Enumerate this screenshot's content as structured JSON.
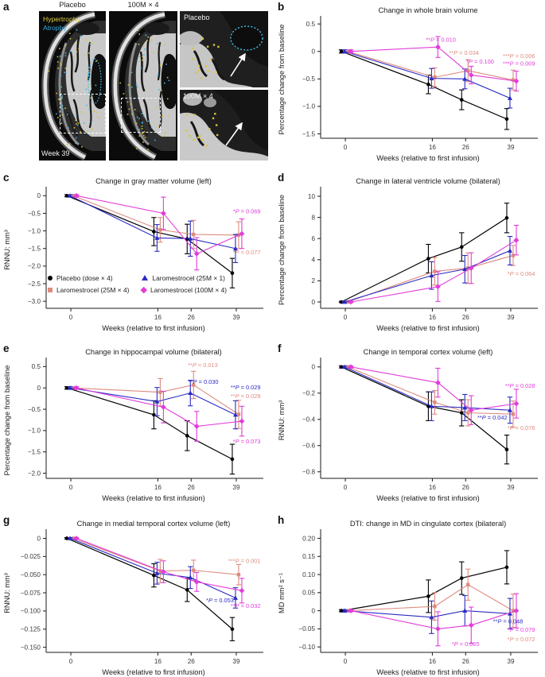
{
  "palette": {
    "ink": "#1a1a1a",
    "tick_text": "#3a3a3a",
    "title_text": "#1c1c1c"
  },
  "groups": [
    {
      "key": "placebo",
      "label": "Placebo (dose × 4)",
      "marker": "circle",
      "color": "#000000"
    },
    {
      "key": "l25m4",
      "label": "Laromestrocel (25M × 4)",
      "marker": "square",
      "color": "#DD8C7F"
    },
    {
      "key": "l25m1",
      "label": "Laromestrocel (25M × 1)",
      "marker": "triangle",
      "color": "#2B2BC4"
    },
    {
      "key": "l100m4",
      "label": "Laromestrocel (100M × 4)",
      "marker": "diamond",
      "color": "#E23CD9"
    }
  ],
  "panel_a": {
    "label": "a",
    "columns": [
      "Placebo",
      "100M × 4"
    ],
    "overlay": {
      "hypertrophy": "Hypertrophy",
      "atrophy": "Atrophy",
      "week": "Week 39"
    },
    "insets": [
      "Placebo",
      "100M × 4"
    ],
    "colors": {
      "hypertrophy": "#E0CC3E",
      "atrophy": "#38A9E0"
    }
  },
  "chart_data": [
    {
      "id": "b",
      "panel_label": "b",
      "type": "line",
      "title": "Change in whole brain volume",
      "ylabel": "Percentage change from baseline",
      "xlabel": "Weeks (relative to first infusion)",
      "x": [
        0,
        16,
        26,
        39
      ],
      "xtick_labels": [
        "0",
        "16",
        "26",
        "39"
      ],
      "yticks": [
        {
          "v": 0.5,
          "label": "0.5"
        },
        {
          "v": 0,
          "label": "0"
        },
        {
          "v": -0.5,
          "label": "−0.5"
        },
        {
          "v": -1.0,
          "label": "−1.0"
        },
        {
          "v": -1.5,
          "label": "−1.5"
        }
      ],
      "ylim": [
        -1.58,
        0.56
      ],
      "series": [
        {
          "key": "placebo",
          "values": [
            0,
            -0.6,
            -0.88,
            -1.23
          ],
          "errors": [
            0.03,
            0.17,
            0.18,
            0.19
          ]
        },
        {
          "key": "l25m4",
          "values": [
            0,
            -0.47,
            -0.35,
            -0.52
          ],
          "errors": [
            0.03,
            0.17,
            0.2,
            0.18
          ]
        },
        {
          "key": "l25m1",
          "values": [
            0,
            -0.49,
            -0.5,
            -0.85
          ],
          "errors": [
            0.03,
            0.18,
            0.18,
            0.18
          ]
        },
        {
          "key": "l100m4",
          "values": [
            0,
            0.08,
            -0.43,
            -0.54
          ],
          "errors": [
            0.03,
            0.19,
            0.16,
            0.18
          ]
        }
      ],
      "annotations": [
        {
          "text": "**P = 0.010",
          "series": "l100m4",
          "x": 14.8,
          "y": 0.18,
          "anchor": "start"
        },
        {
          "text": "**P = 0.034",
          "series": "l25m4",
          "x": 21,
          "y": -0.06,
          "anchor": "start"
        },
        {
          "text": "*P = 0.100",
          "series": "l100m4",
          "x": 26.2,
          "y": -0.22,
          "anchor": "start"
        },
        {
          "text": "***P = 0.006",
          "series": "l25m4",
          "x": 46,
          "y": -0.12,
          "anchor": "end"
        },
        {
          "text": "***P = 0.009",
          "series": "l100m4",
          "x": 46,
          "y": -0.26,
          "anchor": "end"
        }
      ]
    },
    {
      "id": "c",
      "panel_label": "c",
      "type": "line",
      "title": "Change in gray matter volume (left)",
      "ylabel": "RNNU: mm³",
      "xlabel": "Weeks (relative to first infusion)",
      "x": [
        0,
        16,
        26,
        39
      ],
      "xtick_labels": [
        "0",
        "16",
        "26",
        "39"
      ],
      "yticks": [
        {
          "v": 0,
          "label": "0"
        },
        {
          "v": -0.5,
          "label": "−0.5"
        },
        {
          "v": -1.0,
          "label": "−1.0"
        },
        {
          "v": -1.5,
          "label": "−1.5"
        },
        {
          "v": -2.0,
          "label": "−2.0"
        },
        {
          "v": -2.5,
          "label": "−2.5"
        },
        {
          "v": -3.0,
          "label": "−3.0"
        }
      ],
      "ylim": [
        -3.2,
        0.12
      ],
      "series": [
        {
          "key": "placebo",
          "values": [
            0,
            -1.02,
            -1.23,
            -2.2
          ],
          "errors": [
            0.03,
            0.4,
            0.42,
            0.42
          ]
        },
        {
          "key": "l25m4",
          "values": [
            0,
            -0.97,
            -1.1,
            -1.12
          ],
          "errors": [
            0.03,
            0.35,
            0.4,
            0.38
          ]
        },
        {
          "key": "l25m1",
          "values": [
            0,
            -1.2,
            -1.22,
            -1.5
          ],
          "errors": [
            0.03,
            0.38,
            0.5,
            0.4
          ]
        },
        {
          "key": "l100m4",
          "values": [
            0,
            -0.5,
            -1.65,
            -1.08
          ],
          "errors": [
            0.03,
            0.46,
            0.46,
            0.42
          ]
        }
      ],
      "annotations": [
        {
          "text": "*P = 0.069",
          "series": "l100m4",
          "x": 46,
          "y": -0.5,
          "anchor": "end"
        },
        {
          "text": "*P = 0.077",
          "series": "l25m4",
          "x": 46,
          "y": -1.66,
          "anchor": "end"
        }
      ]
    },
    {
      "id": "d",
      "panel_label": "d",
      "type": "line",
      "title": "Change in lateral ventricle volume (bilateral)",
      "ylabel": "Percentage change from baseline",
      "xlabel": "Weeks (relative to first infusion)",
      "x": [
        0,
        16,
        26,
        39
      ],
      "xtick_labels": [
        "0",
        "16",
        "26",
        "39"
      ],
      "yticks": [
        {
          "v": 10,
          "label": "10"
        },
        {
          "v": 8,
          "label": "8"
        },
        {
          "v": 6,
          "label": "6"
        },
        {
          "v": 4,
          "label": "4"
        },
        {
          "v": 2,
          "label": "2"
        },
        {
          "v": 0,
          "label": "0"
        }
      ],
      "ylim": [
        -0.6,
        10.45
      ],
      "series": [
        {
          "key": "placebo",
          "values": [
            0,
            4.1,
            5.2,
            7.95
          ],
          "errors": [
            0.06,
            1.35,
            1.35,
            1.4
          ]
        },
        {
          "key": "l25m4",
          "values": [
            0,
            2.9,
            3.2,
            4.4
          ],
          "errors": [
            0.06,
            1.3,
            1.45,
            0.95
          ]
        },
        {
          "key": "l25m1",
          "values": [
            0,
            2.5,
            3.1,
            4.85
          ],
          "errors": [
            0.06,
            1.3,
            1.3,
            1.35
          ]
        },
        {
          "key": "l100m4",
          "values": [
            0,
            1.45,
            3.2,
            5.85
          ],
          "errors": [
            0.06,
            1.4,
            1.45,
            1.4
          ]
        }
      ],
      "annotations": [
        {
          "text": "*P = 0.064",
          "series": "l25m4",
          "x": 46,
          "y": 2.5,
          "anchor": "end"
        }
      ]
    },
    {
      "id": "e",
      "panel_label": "e",
      "type": "line",
      "title": "Change in hippocampal volume (bilateral)",
      "ylabel": "Percentage change from baseline",
      "xlabel": "Weeks (relative to first infusion)",
      "x": [
        0,
        16,
        26,
        39
      ],
      "xtick_labels": [
        "0",
        "16",
        "26",
        "39"
      ],
      "yticks": [
        {
          "v": 0.5,
          "label": "0.5"
        },
        {
          "v": 0,
          "label": "0"
        },
        {
          "v": -0.5,
          "label": "−0.5"
        },
        {
          "v": -1.0,
          "label": "−1.0"
        },
        {
          "v": -1.5,
          "label": "−1.5"
        },
        {
          "v": -2.0,
          "label": "−2.0"
        }
      ],
      "ylim": [
        -2.12,
        0.6
      ],
      "series": [
        {
          "key": "placebo",
          "values": [
            0,
            -0.63,
            -1.12,
            -1.67
          ],
          "errors": [
            0.03,
            0.33,
            0.35,
            0.35
          ]
        },
        {
          "key": "l25m4",
          "values": [
            0,
            -0.1,
            0.07,
            -0.62
          ],
          "errors": [
            0.03,
            0.32,
            0.32,
            0.33
          ]
        },
        {
          "key": "l25m1",
          "values": [
            0,
            -0.32,
            -0.12,
            -0.63
          ],
          "errors": [
            0.03,
            0.33,
            0.3,
            0.33
          ]
        },
        {
          "key": "l100m4",
          "values": [
            0,
            -0.45,
            -0.9,
            -0.78
          ],
          "errors": [
            0.03,
            0.37,
            0.35,
            0.35
          ]
        }
      ],
      "annotations": [
        {
          "text": "**P = 0.013",
          "series": "l25m4",
          "x": 25,
          "y": 0.49,
          "anchor": "start"
        },
        {
          "text": "**P = 0.030",
          "series": "l25m1",
          "x": 25.2,
          "y": 0.1,
          "anchor": "start"
        },
        {
          "text": "**P = 0.029",
          "series": "l25m1",
          "x": 46,
          "y": -0.03,
          "anchor": "end"
        },
        {
          "text": "**P = 0.028",
          "series": "l25m4",
          "x": 46,
          "y": -0.24,
          "anchor": "end"
        },
        {
          "text": "*P = 0.073",
          "series": "l100m4",
          "x": 46,
          "y": -1.3,
          "anchor": "end"
        }
      ]
    },
    {
      "id": "f",
      "panel_label": "f",
      "type": "line",
      "title": "Change in temporal cortex volume (left)",
      "ylabel": "RNNU: mm³",
      "xlabel": "Weeks (relative to first infusion)",
      "x": [
        0,
        16,
        26,
        39
      ],
      "xtick_labels": [
        "0",
        "16",
        "26",
        "39"
      ],
      "yticks": [
        {
          "v": 0,
          "label": "0"
        },
        {
          "v": -0.2,
          "label": "−0.2"
        },
        {
          "v": -0.4,
          "label": "−0.4"
        },
        {
          "v": -0.6,
          "label": "−0.6"
        },
        {
          "v": -0.8,
          "label": "−0.8"
        }
      ],
      "ylim": [
        -0.85,
        0.035
      ],
      "series": [
        {
          "key": "placebo",
          "values": [
            0,
            -0.3,
            -0.35,
            -0.63
          ],
          "errors": [
            0.008,
            0.11,
            0.1,
            0.11
          ]
        },
        {
          "key": "l25m4",
          "values": [
            0,
            -0.27,
            -0.35,
            -0.36
          ],
          "errors": [
            0.008,
            0.09,
            0.1,
            0.1
          ]
        },
        {
          "key": "l25m1",
          "values": [
            0,
            -0.3,
            -0.31,
            -0.33
          ],
          "errors": [
            0.008,
            0.11,
            0.1,
            0.1
          ]
        },
        {
          "key": "l100m4",
          "values": [
            0,
            -0.12,
            -0.33,
            -0.28
          ],
          "errors": [
            0.008,
            0.11,
            0.11,
            0.11
          ]
        }
      ],
      "annotations": [
        {
          "text": "**P = 0.028",
          "series": "l100m4",
          "x": 46,
          "y": -0.16,
          "anchor": "end"
        },
        {
          "text": "**P = 0.042",
          "series": "l25m1",
          "x": 38,
          "y": -0.4,
          "anchor": "end"
        },
        {
          "text": "*P = 0.076",
          "series": "l25m4",
          "x": 46,
          "y": -0.48,
          "anchor": "end"
        }
      ]
    },
    {
      "id": "g",
      "panel_label": "g",
      "type": "line",
      "title": "Change in medial temporal cortex volume (left)",
      "ylabel": "RNNU: mm³",
      "xlabel": "Weeks (relative to first infusion)",
      "x": [
        0,
        16,
        26,
        39
      ],
      "xtick_labels": [
        "0",
        "16",
        "26",
        "39"
      ],
      "yticks": [
        {
          "v": 0,
          "label": "0"
        },
        {
          "v": -0.025,
          "label": "−0.025"
        },
        {
          "v": -0.05,
          "label": "−0.050"
        },
        {
          "v": -0.075,
          "label": "−0.075"
        },
        {
          "v": -0.1,
          "label": "−0.100"
        },
        {
          "v": -0.125,
          "label": "−0.125"
        },
        {
          "v": -0.15,
          "label": "−0.150"
        }
      ],
      "ylim": [
        -0.157,
        0.006
      ],
      "series": [
        {
          "key": "placebo",
          "values": [
            0,
            -0.051,
            -0.071,
            -0.125
          ],
          "errors": [
            0.001,
            0.016,
            0.016,
            0.016
          ]
        },
        {
          "key": "l25m4",
          "values": [
            0,
            -0.045,
            -0.044,
            -0.05
          ],
          "errors": [
            0.001,
            0.016,
            0.014,
            0.014
          ]
        },
        {
          "key": "l25m1",
          "values": [
            0,
            -0.048,
            -0.054,
            -0.082
          ],
          "errors": [
            0.001,
            0.015,
            0.015,
            0.014
          ]
        },
        {
          "key": "l100m4",
          "values": [
            0,
            -0.046,
            -0.06,
            -0.072
          ],
          "errors": [
            0.001,
            0.015,
            0.013,
            0.017
          ]
        }
      ],
      "annotations": [
        {
          "text": "***P = 0.001",
          "series": "l25m4",
          "x": 46,
          "y": -0.034,
          "anchor": "end"
        },
        {
          "text": "*P = 0.053",
          "series": "l25m1",
          "x": 38.3,
          "y": -0.088,
          "anchor": "end"
        },
        {
          "text": "**P = 0.032",
          "series": "l100m4",
          "x": 46,
          "y": -0.096,
          "anchor": "end"
        }
      ]
    },
    {
      "id": "h",
      "panel_label": "h",
      "type": "line",
      "title": "DTI: change in MD in cingulate cortex (bilateral)",
      "ylabel": "MD mm² s⁻¹",
      "xlabel": "Weeks (relative to first infusion)",
      "x": [
        0,
        16,
        26,
        39
      ],
      "xtick_labels": [
        "0",
        "16",
        "26",
        "39"
      ],
      "yticks": [
        {
          "v": 0.2,
          "label": "0.20"
        },
        {
          "v": 0.15,
          "label": "0.15"
        },
        {
          "v": 0.1,
          "label": "0.10"
        },
        {
          "v": 0.05,
          "label": "0.05"
        },
        {
          "v": 0,
          "label": "0"
        },
        {
          "v": -0.05,
          "label": "−0.05"
        },
        {
          "v": -0.1,
          "label": "−0.10"
        }
      ],
      "ylim": [
        -0.115,
        0.212
      ],
      "series": [
        {
          "key": "placebo",
          "values": [
            0,
            0.04,
            0.09,
            0.12
          ],
          "errors": [
            0.003,
            0.045,
            0.045,
            0.046
          ]
        },
        {
          "key": "l25m4",
          "values": [
            0,
            0.012,
            0.072,
            0.0
          ],
          "errors": [
            0.003,
            0.038,
            0.043,
            0.046
          ]
        },
        {
          "key": "l25m1",
          "values": [
            0,
            -0.018,
            0.0,
            -0.008
          ],
          "errors": [
            0.003,
            0.045,
            0.042,
            0.042
          ]
        },
        {
          "key": "l100m4",
          "values": [
            0,
            -0.05,
            -0.04,
            0.0
          ],
          "errors": [
            0.003,
            0.047,
            0.05,
            0.047
          ]
        }
      ],
      "annotations": [
        {
          "text": "**P = 0.048",
          "series": "l25m1",
          "x": 42.5,
          "y": -0.035,
          "anchor": "end"
        },
        {
          "text": "*P = 0.079",
          "series": "l100m4",
          "x": 46,
          "y": -0.058,
          "anchor": "end"
        },
        {
          "text": "*P = 0.072",
          "series": "l25m4",
          "x": 46,
          "y": -0.084,
          "anchor": "end"
        },
        {
          "text": "*P = 0.065",
          "series": "l100m4",
          "x": 26,
          "y": -0.097,
          "anchor": "middle"
        }
      ]
    }
  ]
}
